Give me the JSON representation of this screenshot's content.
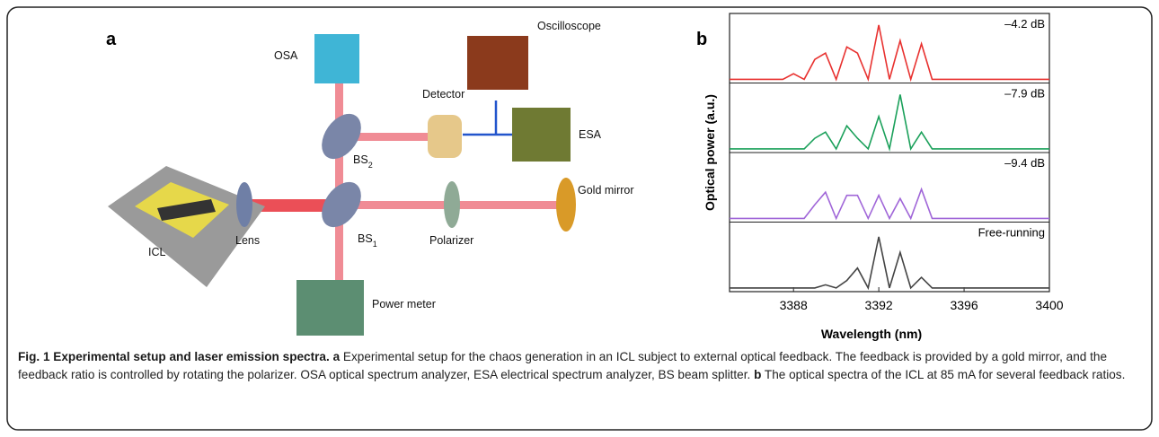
{
  "panel_a": {
    "letter": "a",
    "labels": {
      "osa": "OSA",
      "oscilloscope": "Oscilloscope",
      "detector": "Detector",
      "esa": "ESA",
      "bs2": {
        "text": "BS",
        "sub": "2"
      },
      "bs1": {
        "text": "BS",
        "sub": "1"
      },
      "icl": "ICL",
      "lens": "Lens",
      "polarizer": "Polarizer",
      "gold_mirror": "Gold mirror",
      "power_meter": "Power meter"
    }
  },
  "chart_data": {
    "type": "line",
    "letter": "b",
    "xlabel": "Wavelength (nm)",
    "ylabel": "Optical power (a.u.)",
    "xlim": [
      3385,
      3400
    ],
    "xticks": [
      3388,
      3392,
      3396,
      3400
    ],
    "ylim": [
      0,
      1
    ],
    "x": [
      3385,
      3385.5,
      3386,
      3386.5,
      3387,
      3387.5,
      3388,
      3388.5,
      3389,
      3389.5,
      3390,
      3390.5,
      3391,
      3391.5,
      3392,
      3392.5,
      3393,
      3393.5,
      3394,
      3394.5,
      3395,
      3395.5,
      3396,
      3396.5,
      3397,
      3397.5,
      3398,
      3398.5,
      3399,
      3399.5,
      3400
    ],
    "series": [
      {
        "name": "–4.2 dB",
        "color": "#e8312f",
        "values": [
          0.03,
          0.03,
          0.03,
          0.03,
          0.03,
          0.03,
          0.12,
          0.03,
          0.35,
          0.45,
          0.03,
          0.55,
          0.45,
          0.03,
          0.9,
          0.03,
          0.65,
          0.03,
          0.6,
          0.03,
          0.03,
          0.03,
          0.03,
          0.03,
          0.03,
          0.03,
          0.03,
          0.03,
          0.03,
          0.03,
          0.03
        ]
      },
      {
        "name": "–7.9 dB",
        "color": "#1aa05a",
        "values": [
          0.03,
          0.03,
          0.03,
          0.03,
          0.03,
          0.03,
          0.03,
          0.03,
          0.2,
          0.3,
          0.03,
          0.4,
          0.2,
          0.03,
          0.55,
          0.03,
          0.9,
          0.03,
          0.3,
          0.03,
          0.03,
          0.03,
          0.03,
          0.03,
          0.03,
          0.03,
          0.03,
          0.03,
          0.03,
          0.03,
          0.03
        ]
      },
      {
        "name": "–9.4 dB",
        "color": "#a066d8",
        "values": [
          0.03,
          0.03,
          0.03,
          0.03,
          0.03,
          0.03,
          0.03,
          0.03,
          0.25,
          0.45,
          0.03,
          0.4,
          0.4,
          0.03,
          0.4,
          0.03,
          0.35,
          0.03,
          0.5,
          0.03,
          0.03,
          0.03,
          0.03,
          0.03,
          0.03,
          0.03,
          0.03,
          0.03,
          0.03,
          0.03,
          0.03
        ]
      },
      {
        "name": "Free-running",
        "color": "#444444",
        "values": [
          0.03,
          0.03,
          0.03,
          0.03,
          0.03,
          0.03,
          0.03,
          0.03,
          0.03,
          0.08,
          0.03,
          0.15,
          0.35,
          0.03,
          0.85,
          0.03,
          0.6,
          0.03,
          0.2,
          0.03,
          0.03,
          0.03,
          0.03,
          0.03,
          0.03,
          0.03,
          0.03,
          0.03,
          0.03,
          0.03,
          0.03
        ]
      }
    ]
  },
  "caption": {
    "label": "Fig. 1 Experimental setup and laser emission spectra.",
    "a_letter": "a",
    "a_text": "Experimental setup for the chaos generation in an ICL subject to external optical feedback. The feedback is provided by a gold mirror, and the feedback ratio is controlled by rotating the polarizer. OSA optical spectrum analyzer, ESA electrical spectrum analyzer, BS beam splitter.",
    "b_letter": "b",
    "b_text": "The optical spectra of the ICL at 85 mA for several feedback ratios."
  }
}
